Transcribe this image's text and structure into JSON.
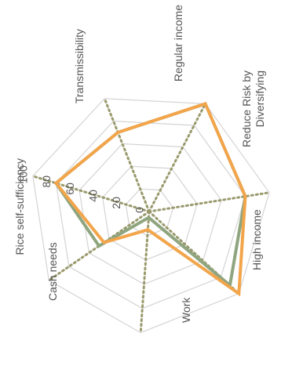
{
  "chart_data": {
    "type": "radar",
    "axes": [
      "Regular income",
      "Reduce Risk by Diversifying",
      "High income",
      "Work",
      "Cash needs",
      "Rice self-sufficiency",
      "Transmissibility"
    ],
    "axis_label_lines": [
      [
        "Regular income"
      ],
      [
        "Reduce Risk by",
        "Diversifying"
      ],
      [
        "High income"
      ],
      [
        "Work"
      ],
      [
        "Cash needs"
      ],
      [
        "Rice self-sufficiency"
      ],
      [
        "Transmissibility"
      ]
    ],
    "ticks": [
      "0",
      "20",
      "40",
      "60",
      "80",
      "100"
    ],
    "range": [
      0,
      100
    ],
    "series": [
      {
        "values": [
          100,
          80,
          90,
          5,
          50,
          80,
          70
        ],
        "color": "#8fa57f"
      },
      {
        "values": [
          100,
          80,
          100,
          15,
          45,
          80,
          70
        ],
        "color": "#f2a54a"
      }
    ],
    "colors": {
      "grid": "#d4d4d4",
      "axis": "#9a9a6e",
      "text": "#555555"
    }
  }
}
